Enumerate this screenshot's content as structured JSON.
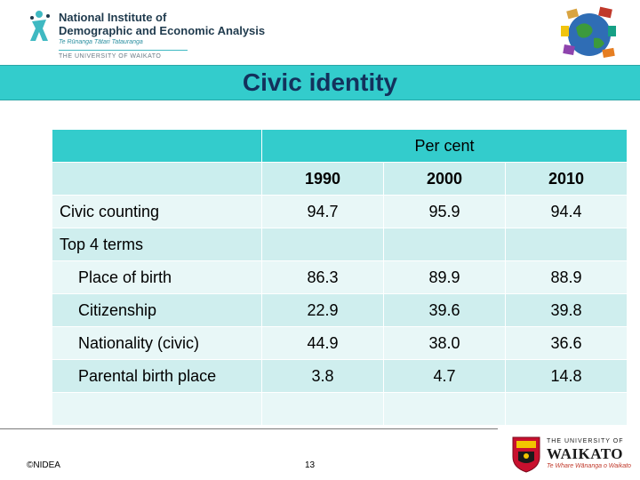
{
  "header": {
    "org_line1": "National Institute of",
    "org_line2": "Demographic and Economic Analysis",
    "org_maori": "Te Rūnanga Tātari Tatauranga",
    "org_university": "THE UNIVERSITY OF WAIKATO"
  },
  "title": "Civic identity",
  "table": {
    "group_header": "Per cent",
    "years": [
      "1990",
      "2000",
      "2010"
    ],
    "rows": [
      {
        "label": "Civic counting",
        "values": [
          "94.7",
          "95.9",
          "94.4"
        ]
      },
      {
        "label": "Top 4 terms",
        "values": [
          "",
          "",
          ""
        ]
      },
      {
        "label": "Place of birth",
        "values": [
          "86.3",
          "89.9",
          "88.9"
        ]
      },
      {
        "label": "Citizenship",
        "values": [
          "22.9",
          "39.6",
          "39.8"
        ]
      },
      {
        "label": "Nationality (civic)",
        "values": [
          "44.9",
          "38.0",
          "36.6"
        ]
      },
      {
        "label": "Parental birth place",
        "values": [
          "3.8",
          "4.7",
          "14.8"
        ]
      },
      {
        "label": "",
        "values": [
          "",
          "",
          ""
        ]
      }
    ]
  },
  "footer": {
    "copyright": "©NIDEA",
    "page_number": "13",
    "uni_line1": "THE UNIVERSITY OF",
    "uni_line2": "WAIKATO",
    "uni_line3": "Te Whare Wānanga o Waikato"
  },
  "colors": {
    "accent": "#33cccc",
    "title_text": "#13315c",
    "row_light": "#e8f7f7",
    "row_dark": "#cfeeee"
  }
}
